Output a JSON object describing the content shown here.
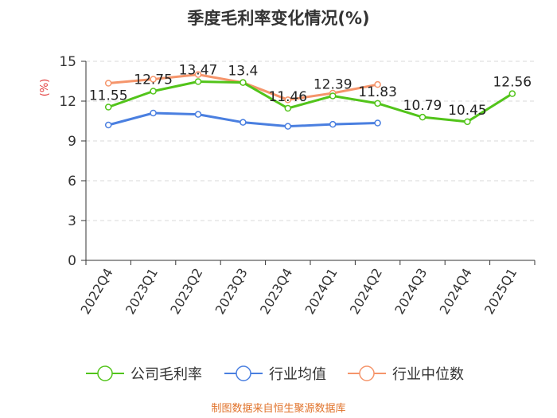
{
  "chart_data": {
    "type": "line",
    "title": "季度毛利率变化情况(%)",
    "ylabel": "(%)",
    "xlabel": "",
    "categories": [
      "2022Q4",
      "2023Q1",
      "2023Q2",
      "2023Q3",
      "2023Q4",
      "2024Q1",
      "2024Q2",
      "2024Q3",
      "2024Q4",
      "2025Q1"
    ],
    "ylim": [
      0,
      15
    ],
    "yticks": [
      0,
      3,
      6,
      9,
      12,
      15
    ],
    "grid": true,
    "legend_position": "bottom",
    "series": [
      {
        "name": "公司毛利率",
        "color": "#52c41a",
        "values": [
          11.55,
          12.75,
          13.47,
          13.4,
          11.46,
          12.39,
          11.83,
          10.79,
          10.45,
          12.56
        ],
        "labels": [
          "11.55",
          "12.75",
          "13.47",
          "13.4",
          "11.46",
          "12.39",
          "11.83",
          "10.79",
          "10.45",
          "12.56"
        ]
      },
      {
        "name": "行业均值",
        "color": "#4a7fe0",
        "values": [
          10.2,
          11.1,
          11.0,
          10.4,
          10.1,
          10.25,
          10.35,
          null,
          null,
          null
        ]
      },
      {
        "name": "行业中位数",
        "color": "#f5956b",
        "values": [
          13.35,
          13.65,
          14.0,
          13.4,
          12.1,
          12.6,
          13.25,
          null,
          null,
          null
        ]
      }
    ]
  },
  "source": "制图数据来自恒生聚源数据库"
}
